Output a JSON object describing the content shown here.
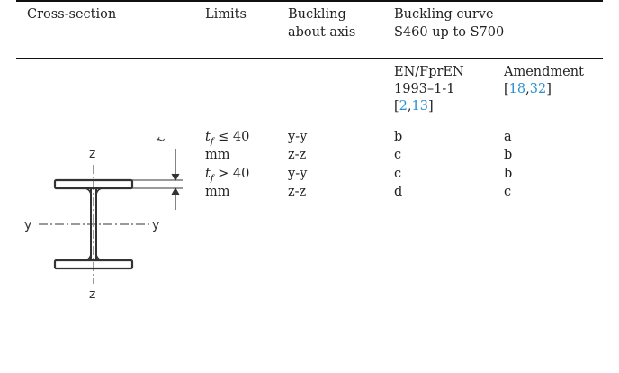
{
  "headers": {
    "cross_section": "Cross-section",
    "limits": "Limits",
    "buckling_axis_line1": "Buckling",
    "buckling_axis_line2": "about axis",
    "buckling_curve_line1": "Buckling curve",
    "buckling_curve_line2": "S460 up to S700"
  },
  "subheaders": {
    "en_line1": "EN/FprEN",
    "en_line2": "1993–1-1",
    "en_refs": [
      "2",
      "13"
    ],
    "amendment_line1": "Amendment",
    "amendment_refs": [
      "18",
      "32"
    ]
  },
  "figure": {
    "axis_z_top": "z",
    "axis_z_bottom": "z",
    "axis_y_left": "y",
    "axis_y_right": "y",
    "dim_label": "t"
  },
  "rows": [
    {
      "limit_var": "t",
      "limit_sub": "f",
      "limit_op": "≤ 40",
      "axis": "y-y",
      "en": "b",
      "amendment": "a"
    },
    {
      "limit_var": "",
      "limit_sub": "",
      "limit_op": "mm",
      "axis": "z-z",
      "en": "c",
      "amendment": "b"
    },
    {
      "limit_var": "t",
      "limit_sub": "f",
      "limit_op": "> 40",
      "axis": "y-y",
      "en": "c",
      "amendment": "b"
    },
    {
      "limit_var": "",
      "limit_sub": "",
      "limit_op": "mm",
      "axis": "z-z",
      "en": "d",
      "amendment": "c"
    }
  ]
}
